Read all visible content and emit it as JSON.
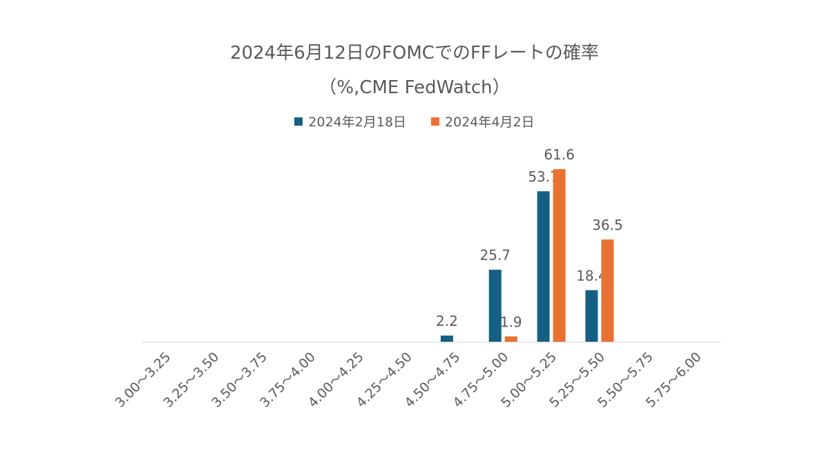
{
  "chart_data": {
    "type": "bar",
    "title": "2024年6月12日のFOMCでのFFレートの確率",
    "subtitle": "（%,CME FedWatch）",
    "xlabel": "",
    "ylabel": "",
    "ylim": [
      0,
      70
    ],
    "grid": false,
    "legend_position": "top",
    "categories": [
      "3.00～3.25",
      "3.25～3.50",
      "3.50～3.75",
      "3.75～4.00",
      "4.00～4.25",
      "4.25～4.50",
      "4.50～4.75",
      "4.75～5.00",
      "5.00～5.25",
      "5.25～5.50",
      "5.50～5.75",
      "5.75～6.00"
    ],
    "series": [
      {
        "name": "2024年2月18日",
        "color": "#156082",
        "values": [
          0,
          0,
          0,
          0,
          0,
          0,
          2.2,
          25.7,
          53.7,
          18.4,
          0,
          0
        ]
      },
      {
        "name": "2024年4月2日",
        "color": "#E97132",
        "values": [
          0,
          0,
          0,
          0,
          0,
          0,
          0,
          1.9,
          61.6,
          36.5,
          0,
          0
        ]
      }
    ]
  }
}
